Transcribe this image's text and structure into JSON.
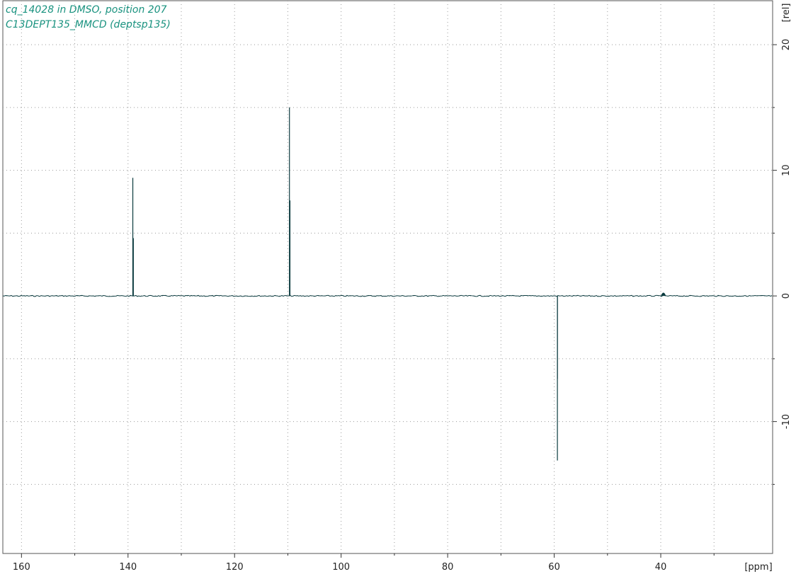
{
  "header": {
    "line1": "cq_14028 in DMSO, position 207",
    "line2": "C13DEPT135_MMCD (deptsp135)"
  },
  "chart_data": {
    "type": "line",
    "title": "cq_14028 in DMSO, position 207",
    "subtitle": "C13DEPT135_MMCD (deptsp135)",
    "xlabel": "[ppm]",
    "ylabel": "[rel]",
    "xlim": [
      163.5,
      19
    ],
    "ylim": [
      -20.5,
      23.5
    ],
    "x_ticks": [
      160,
      140,
      120,
      100,
      80,
      60,
      40
    ],
    "y_ticks": [
      20,
      10,
      0,
      -10
    ],
    "x_minor_grid": [
      150,
      130,
      110,
      90,
      70,
      50,
      30
    ],
    "y_minor_grid": [
      15,
      5,
      -5,
      -15
    ],
    "grid": true,
    "series": [
      {
        "peaks": [
          {
            "x": 139.1,
            "y": 9.4
          },
          {
            "x": 139.0,
            "y": 4.6
          },
          {
            "x": 109.7,
            "y": 15.0
          },
          {
            "x": 109.6,
            "y": 7.6
          },
          {
            "x": 59.4,
            "y": -13.1
          },
          {
            "x": 59.4,
            "y": -6.6
          },
          {
            "x": 39.5,
            "y": 0.35
          }
        ]
      }
    ],
    "colors": {
      "spectrum": "#0b3b3f",
      "grid": "#9a9a9a",
      "title": "#19927f"
    }
  }
}
